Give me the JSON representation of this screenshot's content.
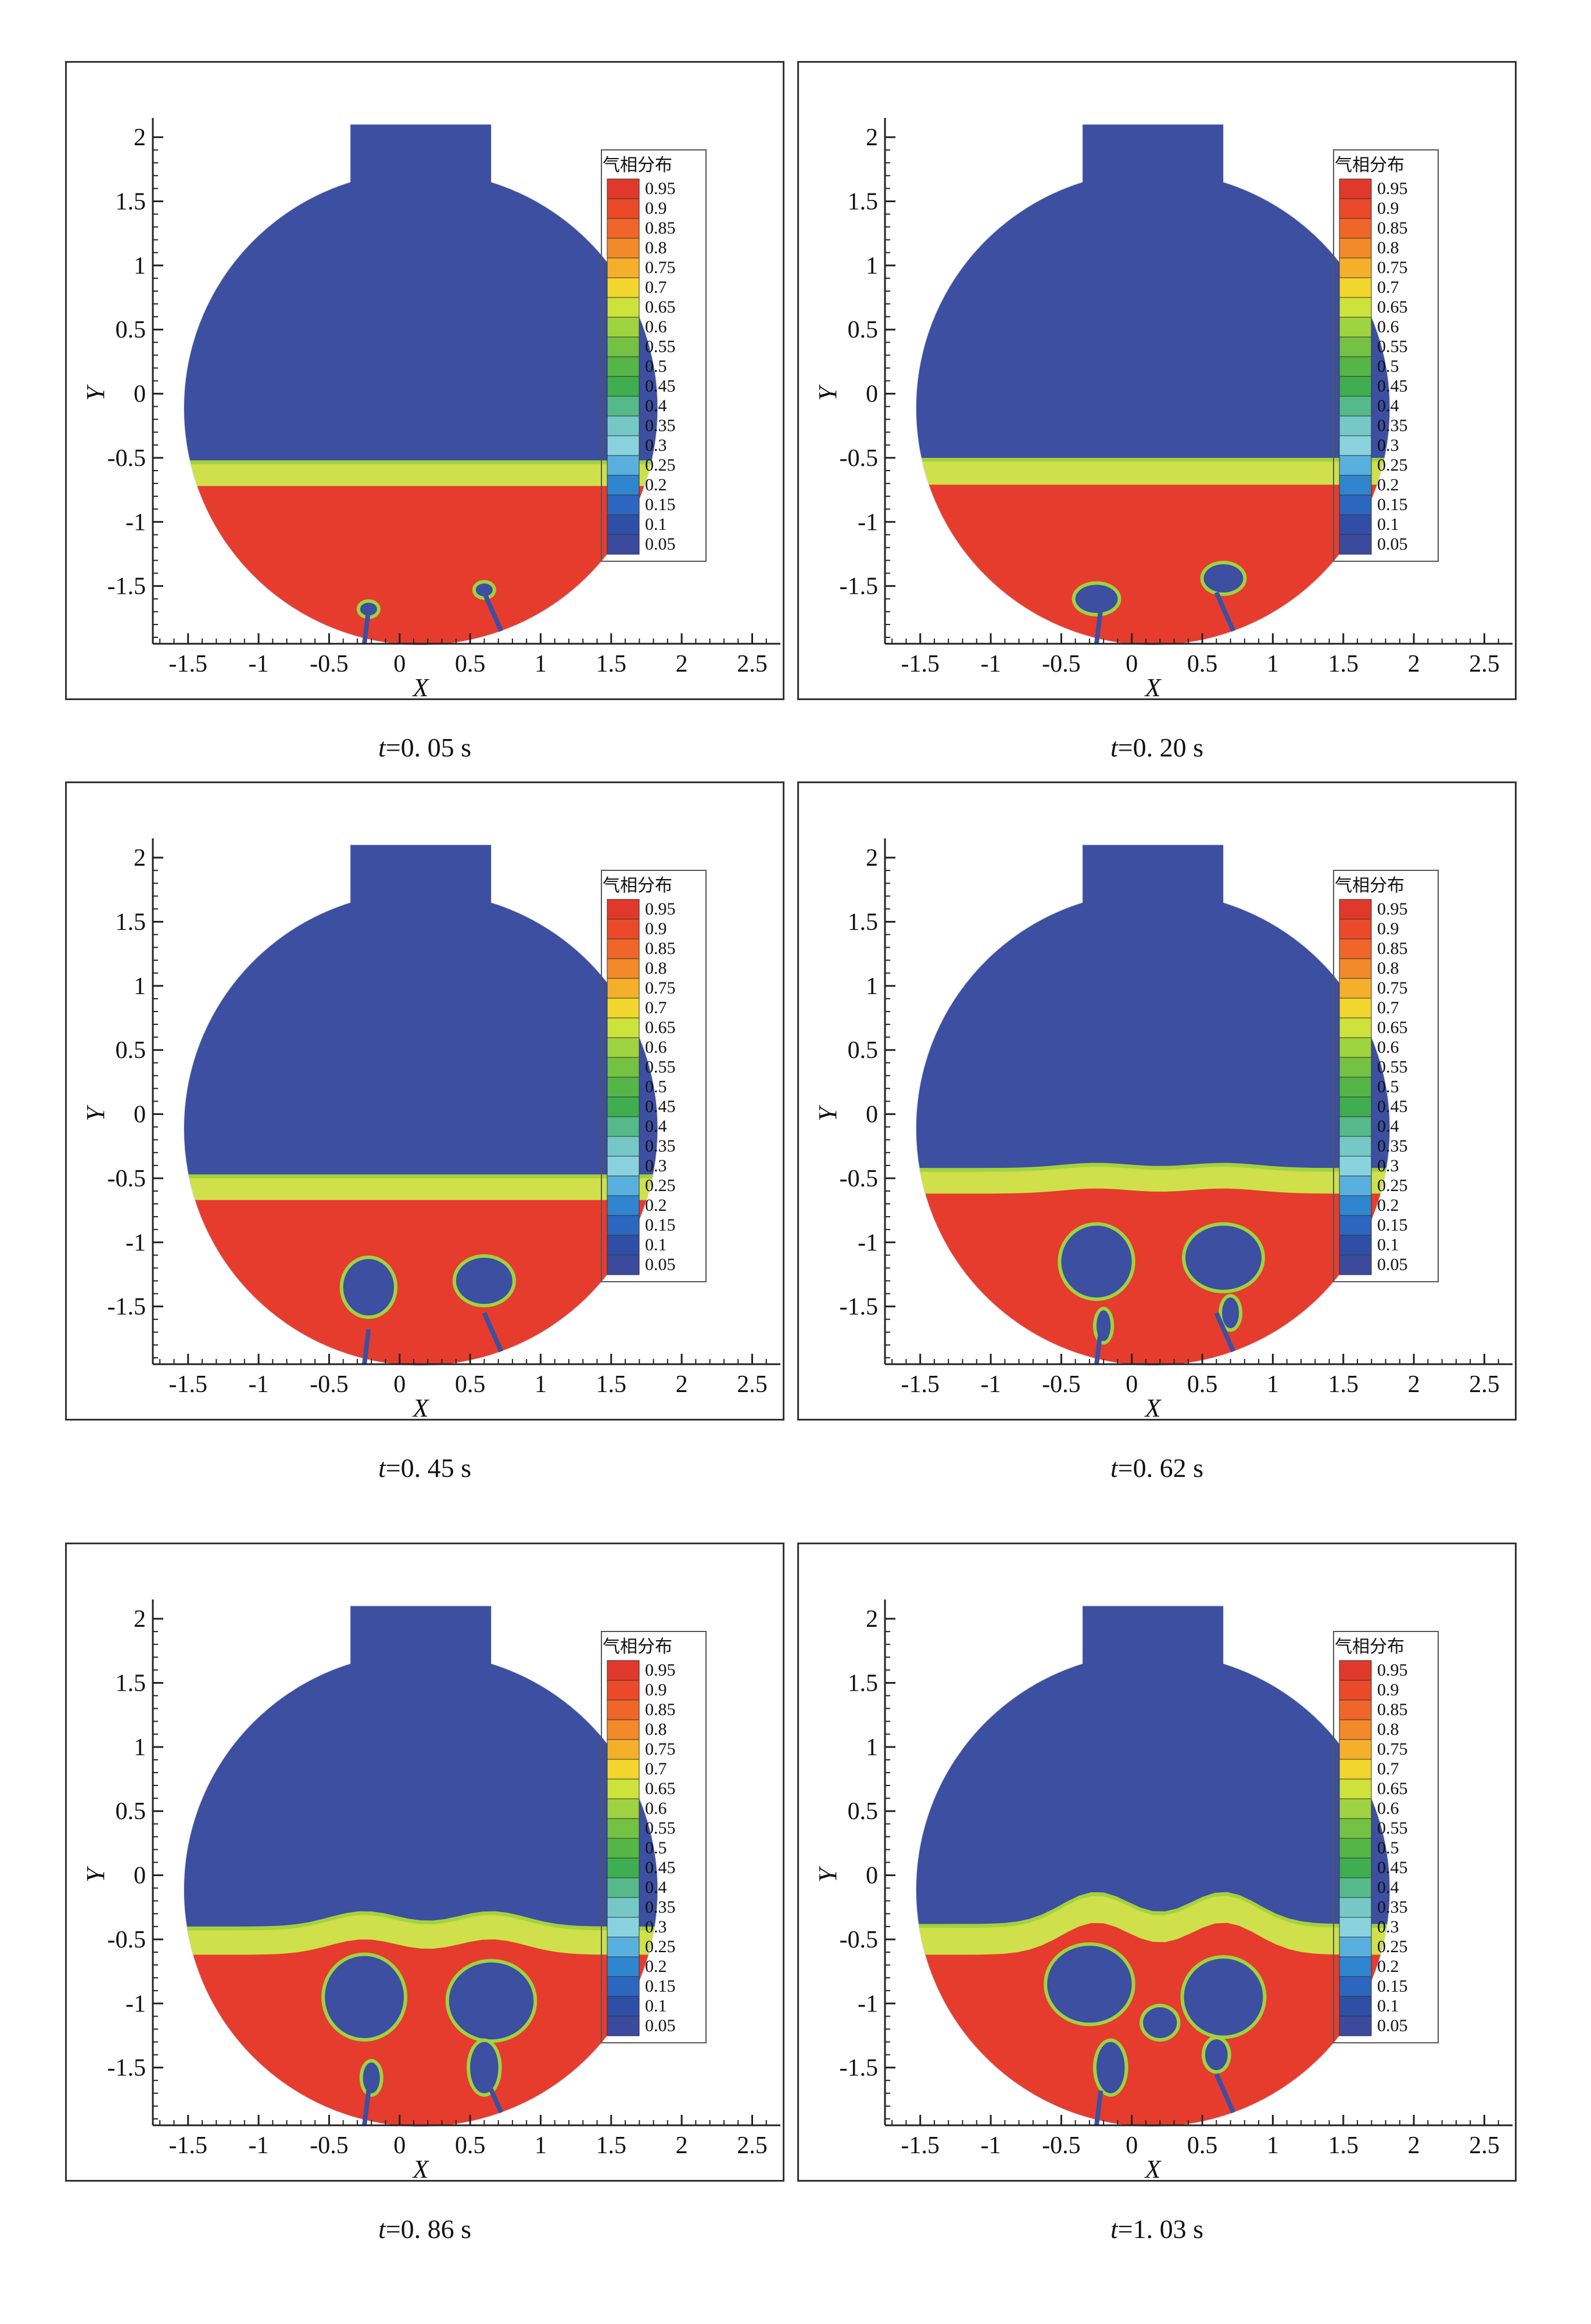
{
  "figure": {
    "legend_title": "气相分布",
    "legend_levels": [
      "0.95",
      "0.9",
      "0.85",
      "0.8",
      "0.75",
      "0.7",
      "0.65",
      "0.6",
      "0.55",
      "0.5",
      "0.45",
      "0.4",
      "0.35",
      "0.3",
      "0.25",
      "0.2",
      "0.15",
      "0.1",
      "0.05"
    ],
    "legend_colors": [
      "#e0392b",
      "#ea4a2a",
      "#f0662a",
      "#f2892a",
      "#f5b02b",
      "#f2d52d",
      "#cde23a",
      "#9fd33f",
      "#74c244",
      "#55b547",
      "#3fae50",
      "#56b98a",
      "#76c8c7",
      "#8ad3de",
      "#59b0df",
      "#2f86cf",
      "#2d66bf",
      "#2f4fa6",
      "#3b4a9d"
    ],
    "x_axis_label": "X",
    "y_axis_label": "Y",
    "x_ticks": [
      "-1.5",
      "-1",
      "-0.5",
      "0",
      "0.5",
      "1",
      "1.5",
      "2",
      "2.5"
    ],
    "y_ticks": [
      "2",
      "1.5",
      "1",
      "0.5",
      "0",
      "-0.5",
      "-1",
      "-1.5"
    ],
    "colors": {
      "gas": "#3c4fa0",
      "liquid": "#e63c2e",
      "interface": "#a4d23e",
      "frame": "#333333"
    }
  },
  "panels": [
    {
      "t_label": "t",
      "caption_value": "=0. 05  s",
      "stage": 0
    },
    {
      "t_label": "t",
      "caption_value": "=0. 20  s",
      "stage": 1
    },
    {
      "t_label": "t",
      "caption_value": "=0. 45  s",
      "stage": 2
    },
    {
      "t_label": "t",
      "caption_value": "=0. 62  s",
      "stage": 3
    },
    {
      "t_label": "t",
      "caption_value": "=0. 86  s",
      "stage": 4
    },
    {
      "t_label": "t",
      "caption_value": "=1. 03  s",
      "stage": 5
    }
  ]
}
